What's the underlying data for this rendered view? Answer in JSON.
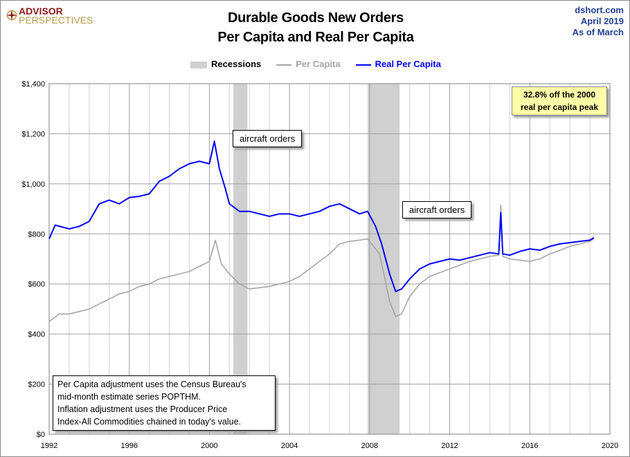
{
  "header": {
    "logo_line1": "ADVISOR",
    "logo_line2": "PERSPECTIVES",
    "source": "dshort.com",
    "date": "April 2019",
    "as_of": "As of March"
  },
  "chart_data": {
    "type": "line",
    "title": "Durable Goods New Orders",
    "subtitle": "Per Capita and Real Per Capita",
    "xlim": [
      1992,
      2020
    ],
    "ylim": [
      0,
      1400
    ],
    "x_ticks": [
      "1992",
      "1996",
      "2000",
      "2004",
      "2008",
      "2012",
      "2016",
      "2020"
    ],
    "y_ticks": [
      "$0",
      "$200",
      "$400",
      "$600",
      "$800",
      "$1,000",
      "$1,200",
      "$1,400"
    ],
    "grid": true,
    "legend": {
      "placement": "top-center",
      "recessions": "Recessions",
      "per_capita": "Per Capita",
      "real_per_capita": "Real Per Capita"
    },
    "colors": {
      "recessions": "#d0d0d0",
      "per_capita": "#a6a6a6",
      "real_per_capita": "#0000ff"
    },
    "recessions": [
      [
        2001.2,
        2001.9
      ],
      [
        2007.9,
        2009.5
      ]
    ],
    "series": [
      {
        "name": "Per Capita",
        "points": [
          [
            1992,
            450
          ],
          [
            1992.5,
            480
          ],
          [
            1993,
            480
          ],
          [
            1993.5,
            490
          ],
          [
            1994,
            500
          ],
          [
            1994.5,
            520
          ],
          [
            1995,
            540
          ],
          [
            1995.5,
            560
          ],
          [
            1996,
            570
          ],
          [
            1996.5,
            590
          ],
          [
            1997,
            600
          ],
          [
            1997.5,
            620
          ],
          [
            1998,
            630
          ],
          [
            1998.5,
            640
          ],
          [
            1999,
            650
          ],
          [
            1999.5,
            670
          ],
          [
            2000,
            690
          ],
          [
            2000.3,
            775
          ],
          [
            2000.6,
            680
          ],
          [
            2001,
            640
          ],
          [
            2001.5,
            600
          ],
          [
            2002,
            580
          ],
          [
            2002.5,
            585
          ],
          [
            2003,
            590
          ],
          [
            2003.5,
            600
          ],
          [
            2004,
            610
          ],
          [
            2004.5,
            630
          ],
          [
            2005,
            660
          ],
          [
            2005.5,
            690
          ],
          [
            2006,
            720
          ],
          [
            2006.5,
            760
          ],
          [
            2007,
            770
          ],
          [
            2007.5,
            775
          ],
          [
            2007.9,
            780
          ],
          [
            2008.5,
            720
          ],
          [
            2009,
            530
          ],
          [
            2009.3,
            470
          ],
          [
            2009.6,
            480
          ],
          [
            2010,
            550
          ],
          [
            2010.5,
            600
          ],
          [
            2011,
            630
          ],
          [
            2011.5,
            645
          ],
          [
            2012,
            660
          ],
          [
            2012.5,
            675
          ],
          [
            2013,
            690
          ],
          [
            2013.5,
            700
          ],
          [
            2014,
            710
          ],
          [
            2014.45,
            715
          ],
          [
            2014.55,
            915
          ],
          [
            2014.65,
            710
          ],
          [
            2015,
            700
          ],
          [
            2015.5,
            695
          ],
          [
            2016,
            690
          ],
          [
            2016.5,
            700
          ],
          [
            2017,
            720
          ],
          [
            2017.5,
            735
          ],
          [
            2018,
            750
          ],
          [
            2018.5,
            760
          ],
          [
            2019,
            770
          ],
          [
            2019.2,
            780
          ]
        ]
      },
      {
        "name": "Real Per Capita",
        "points": [
          [
            1992,
            780
          ],
          [
            1992.3,
            835
          ],
          [
            1993,
            820
          ],
          [
            1993.5,
            830
          ],
          [
            1994,
            850
          ],
          [
            1994.5,
            920
          ],
          [
            1995,
            935
          ],
          [
            1995.5,
            920
          ],
          [
            1996,
            945
          ],
          [
            1996.5,
            950
          ],
          [
            1997,
            960
          ],
          [
            1997.5,
            1010
          ],
          [
            1998,
            1030
          ],
          [
            1998.5,
            1060
          ],
          [
            1999,
            1080
          ],
          [
            1999.5,
            1090
          ],
          [
            2000,
            1080
          ],
          [
            2000.25,
            1170
          ],
          [
            2000.5,
            1060
          ],
          [
            2000.8,
            980
          ],
          [
            2001,
            920
          ],
          [
            2001.5,
            890
          ],
          [
            2002,
            890
          ],
          [
            2002.5,
            880
          ],
          [
            2003,
            870
          ],
          [
            2003.5,
            880
          ],
          [
            2004,
            880
          ],
          [
            2004.5,
            870
          ],
          [
            2005,
            880
          ],
          [
            2005.5,
            890
          ],
          [
            2006,
            910
          ],
          [
            2006.5,
            920
          ],
          [
            2007,
            900
          ],
          [
            2007.5,
            880
          ],
          [
            2007.9,
            890
          ],
          [
            2008.3,
            830
          ],
          [
            2008.6,
            760
          ],
          [
            2009,
            640
          ],
          [
            2009.3,
            570
          ],
          [
            2009.6,
            580
          ],
          [
            2010,
            620
          ],
          [
            2010.5,
            660
          ],
          [
            2011,
            680
          ],
          [
            2011.5,
            690
          ],
          [
            2012,
            700
          ],
          [
            2012.5,
            695
          ],
          [
            2013,
            705
          ],
          [
            2013.5,
            715
          ],
          [
            2014,
            725
          ],
          [
            2014.45,
            720
          ],
          [
            2014.55,
            885
          ],
          [
            2014.65,
            720
          ],
          [
            2015,
            715
          ],
          [
            2015.5,
            730
          ],
          [
            2016,
            740
          ],
          [
            2016.5,
            735
          ],
          [
            2017,
            750
          ],
          [
            2017.5,
            760
          ],
          [
            2018,
            765
          ],
          [
            2018.5,
            770
          ],
          [
            2019,
            775
          ],
          [
            2019.2,
            785
          ]
        ]
      }
    ],
    "annotations": {
      "aircraft1": "aircraft orders",
      "aircraft2": "aircraft orders",
      "peak_line1": "32.8% off the 2000",
      "peak_line2": "real per capita peak"
    },
    "note": [
      "Per Capita adjustment uses the Census Bureau's",
      "mid-month estimate series POPTHM.",
      "Inflation adjustment uses the Producer Price",
      "Index-All Commodities chained in today's value."
    ]
  }
}
